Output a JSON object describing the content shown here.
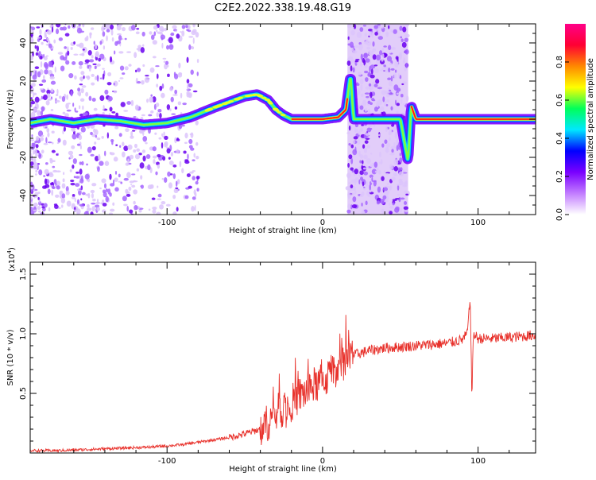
{
  "title": "C2E2.2022.338.19.48.G19",
  "chart_data": [
    {
      "type": "heatmap",
      "xlabel": "Height of straight line (km)",
      "ylabel": "Frequency (Hz)",
      "xlim": [
        -188,
        137
      ],
      "ylim": [
        -50,
        50
      ],
      "xticks": [
        -100,
        0,
        100
      ],
      "yticks": [
        -40,
        -20,
        0,
        20,
        40
      ],
      "colorbar": {
        "label": "Normalized spectral amplitude",
        "range": [
          0.0,
          1.0
        ],
        "ticks": [
          "0.0",
          "0.2",
          "0.4",
          "0.6",
          "0.8"
        ],
        "colors": [
          "#ffffff",
          "#c27cff",
          "#7a00ff",
          "#0000ff",
          "#00e8ff",
          "#00ff5a",
          "#ffff00",
          "#ff8800",
          "#ff0033",
          "#ff0088"
        ]
      },
      "noise_bands": [
        [
          -188,
          -80
        ],
        [
          16,
          55
        ]
      ],
      "trace": {
        "x": [
          -188,
          -175,
          -160,
          -145,
          -130,
          -115,
          -100,
          -85,
          -70,
          -60,
          -50,
          -42,
          -35,
          -30,
          -25,
          -20,
          -10,
          0,
          10,
          15,
          18,
          20,
          50,
          55,
          57,
          60,
          80,
          100,
          120,
          137
        ],
        "y": [
          -2,
          0,
          -2,
          0,
          -1,
          -3,
          -2,
          1,
          6,
          9,
          12,
          13,
          10,
          5,
          2,
          0,
          0,
          0,
          1,
          5,
          23,
          0,
          0,
          -22,
          7,
          0,
          0,
          0,
          0,
          0
        ]
      }
    },
    {
      "type": "line",
      "xlabel": "Height of straight line (km)",
      "ylabel": "SNR (10 * v/v)",
      "multiplier": "(x10",
      "multiplier_exp": "4",
      "xlim": [
        -188,
        137
      ],
      "ylim": [
        0,
        1.6
      ],
      "xticks": [
        -100,
        0,
        100
      ],
      "yticks": [
        "0.5",
        "1.0",
        "1.5"
      ],
      "color": "#e8322c",
      "series": [
        {
          "x": [
            -188,
            -170,
            -150,
            -130,
            -110,
            -90,
            -80,
            -70,
            -60,
            -50,
            -40,
            -35,
            -30,
            -25,
            -20,
            -15,
            -10,
            -5,
            0,
            5,
            10,
            15,
            20,
            25,
            30,
            40,
            50,
            60,
            70,
            80,
            90,
            93,
            95,
            96,
            97,
            100,
            110,
            120,
            130,
            137
          ],
          "y": [
            0.02,
            0.02,
            0.03,
            0.04,
            0.05,
            0.07,
            0.09,
            0.11,
            0.13,
            0.16,
            0.2,
            0.26,
            0.33,
            0.38,
            0.42,
            0.48,
            0.52,
            0.57,
            0.6,
            0.66,
            0.73,
            0.78,
            0.82,
            0.84,
            0.86,
            0.88,
            0.89,
            0.9,
            0.91,
            0.92,
            0.95,
            1.0,
            1.3,
            0.45,
            1.0,
            0.96,
            0.96,
            0.97,
            0.98,
            0.99
          ]
        }
      ]
    }
  ]
}
